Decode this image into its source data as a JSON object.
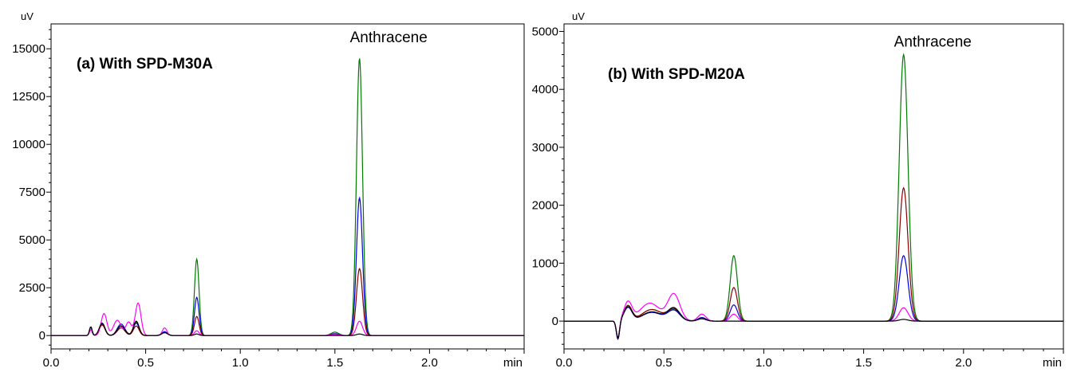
{
  "chart_data": [
    {
      "type": "line",
      "title": "(a) With SPD-M30A",
      "y_unit": "uV",
      "x_unit": "min",
      "xlim": [
        0.0,
        2.5
      ],
      "ylim": [
        -700,
        16300
      ],
      "x_ticks": [
        "0.0",
        "0.5",
        "1.0",
        "1.5",
        "2.0"
      ],
      "y_ticks": [
        "0",
        "2500",
        "5000",
        "7500",
        "10000",
        "12500",
        "15000"
      ],
      "annotations": [
        {
          "text": "Anthracene",
          "x": 1.63,
          "y": 14600
        }
      ],
      "grid": false,
      "legend": "none",
      "series": [
        {
          "color": "#007a00",
          "peaks": [
            [
              0.21,
              450,
              0.007
            ],
            [
              0.27,
              600,
              0.015
            ],
            [
              0.37,
              500,
              0.02
            ],
            [
              0.45,
              700,
              0.015
            ],
            [
              0.6,
              180,
              0.015
            ],
            [
              0.77,
              4000,
              0.012
            ],
            [
              1.5,
              180,
              0.02
            ],
            [
              1.63,
              14500,
              0.016
            ]
          ]
        },
        {
          "color": "#0000e0",
          "peaks": [
            [
              0.21,
              450,
              0.007
            ],
            [
              0.27,
              600,
              0.015
            ],
            [
              0.37,
              600,
              0.02
            ],
            [
              0.45,
              650,
              0.015
            ],
            [
              0.6,
              200,
              0.015
            ],
            [
              0.77,
              2000,
              0.012
            ],
            [
              1.5,
              100,
              0.02
            ],
            [
              1.63,
              7200,
              0.016
            ]
          ]
        },
        {
          "color": "#8b0000",
          "peaks": [
            [
              0.21,
              450,
              0.007
            ],
            [
              0.27,
              550,
              0.015
            ],
            [
              0.37,
              400,
              0.02
            ],
            [
              0.45,
              500,
              0.015
            ],
            [
              0.6,
              150,
              0.015
            ],
            [
              0.77,
              1000,
              0.012
            ],
            [
              1.5,
              80,
              0.02
            ],
            [
              1.63,
              3500,
              0.016
            ]
          ]
        },
        {
          "color": "#ff00ff",
          "peaks": [
            [
              0.21,
              300,
              0.007
            ],
            [
              0.28,
              1150,
              0.015
            ],
            [
              0.35,
              800,
              0.02
            ],
            [
              0.41,
              700,
              0.015
            ],
            [
              0.46,
              1700,
              0.015
            ],
            [
              0.6,
              400,
              0.012
            ],
            [
              0.77,
              250,
              0.012
            ],
            [
              1.5,
              50,
              0.02
            ],
            [
              1.63,
              750,
              0.016
            ]
          ]
        },
        {
          "color": "#000000",
          "peaks": [
            [
              0.21,
              450,
              0.007
            ],
            [
              0.27,
              650,
              0.015
            ],
            [
              0.37,
              500,
              0.02
            ],
            [
              0.45,
              750,
              0.015
            ],
            [
              0.6,
              150,
              0.015
            ],
            [
              0.77,
              80,
              0.012
            ],
            [
              1.63,
              80,
              0.016
            ]
          ]
        }
      ]
    },
    {
      "type": "line",
      "title": "(b) With SPD-M20A",
      "y_unit": "uV",
      "x_unit": "min",
      "xlim": [
        0.0,
        2.5
      ],
      "ylim": [
        -480,
        5130
      ],
      "x_ticks": [
        "0.0",
        "0.5",
        "1.0",
        "1.5",
        "2.0"
      ],
      "y_ticks": [
        "0",
        "1000",
        "2000",
        "3000",
        "4000",
        "5000"
      ],
      "annotations": [
        {
          "text": "Anthracene",
          "x": 1.7,
          "y": 4600
        }
      ],
      "grid": false,
      "legend": "none",
      "series": [
        {
          "color": "#007a00",
          "peaks": [
            [
              0.27,
              -320,
              0.008
            ],
            [
              0.32,
              260,
              0.02
            ],
            [
              0.44,
              200,
              0.05
            ],
            [
              0.55,
              180,
              0.03
            ],
            [
              0.69,
              60,
              0.02
            ],
            [
              0.85,
              1130,
              0.018
            ],
            [
              1.7,
              4600,
              0.022
            ]
          ]
        },
        {
          "color": "#8b0000",
          "peaks": [
            [
              0.27,
              -320,
              0.008
            ],
            [
              0.32,
              260,
              0.02
            ],
            [
              0.44,
              200,
              0.05
            ],
            [
              0.55,
              200,
              0.03
            ],
            [
              0.69,
              60,
              0.02
            ],
            [
              0.85,
              580,
              0.018
            ],
            [
              1.7,
              2300,
              0.022
            ]
          ]
        },
        {
          "color": "#0000e0",
          "peaks": [
            [
              0.27,
              -320,
              0.008
            ],
            [
              0.32,
              230,
              0.02
            ],
            [
              0.44,
              150,
              0.05
            ],
            [
              0.55,
              180,
              0.03
            ],
            [
              0.69,
              60,
              0.02
            ],
            [
              0.85,
              280,
              0.018
            ],
            [
              1.7,
              1130,
              0.022
            ]
          ]
        },
        {
          "color": "#ff00ff",
          "peaks": [
            [
              0.27,
              -300,
              0.008
            ],
            [
              0.32,
              320,
              0.02
            ],
            [
              0.43,
              310,
              0.05
            ],
            [
              0.55,
              460,
              0.03
            ],
            [
              0.69,
              120,
              0.02
            ],
            [
              0.85,
              120,
              0.018
            ],
            [
              1.7,
              230,
              0.022
            ]
          ]
        },
        {
          "color": "#000000",
          "peaks": [
            [
              0.27,
              -300,
              0.008
            ],
            [
              0.32,
              240,
              0.02
            ],
            [
              0.44,
              160,
              0.05
            ],
            [
              0.55,
              220,
              0.03
            ],
            [
              0.69,
              40,
              0.02
            ],
            [
              1.7,
              30,
              0.022
            ]
          ]
        }
      ]
    }
  ]
}
